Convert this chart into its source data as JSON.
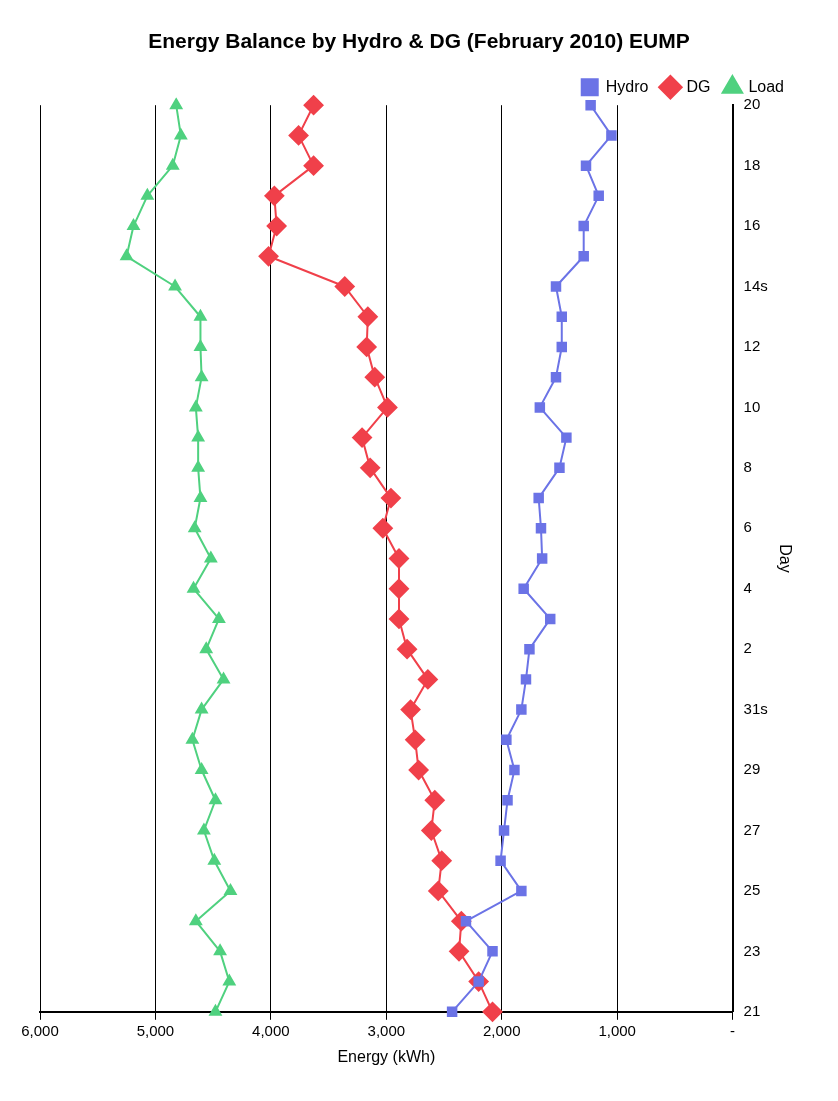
{
  "chart_data": {
    "type": "line",
    "title": "Energy Balance by Hydro & DG (February 2010) EUMP",
    "xlabel": "Energy (kWh)",
    "ylabel": "Day",
    "orientation": "horizontal",
    "categories": [
      "20",
      null,
      "18",
      null,
      "16",
      null,
      "14s",
      null,
      "12",
      null,
      "10",
      null,
      "8",
      null,
      "6",
      null,
      "4",
      null,
      "2",
      null,
      "31s",
      null,
      "29",
      null,
      "27",
      null,
      "25",
      null,
      "23",
      null,
      "21"
    ],
    "series": [
      {
        "name": "Hydro",
        "color": "#6b73e6",
        "marker": "square",
        "values": [
          1230,
          1050,
          1270,
          1160,
          1290,
          1290,
          1530,
          1480,
          1480,
          1530,
          1670,
          1440,
          1500,
          1680,
          1660,
          1650,
          1810,
          1580,
          1760,
          1790,
          1830,
          1960,
          1890,
          1950,
          1980,
          2010,
          1830,
          2310,
          2080,
          2200,
          2430
        ]
      },
      {
        "name": "DG",
        "color": "#f0404a",
        "marker": "diamond",
        "values": [
          3630,
          3760,
          3630,
          3970,
          3950,
          4020,
          3360,
          3160,
          3170,
          3100,
          2990,
          3210,
          3140,
          2960,
          3030,
          2890,
          2890,
          2890,
          2820,
          2640,
          2790,
          2750,
          2720,
          2580,
          2610,
          2520,
          2550,
          2350,
          2370,
          2200,
          2080
        ]
      },
      {
        "name": "Load",
        "color": "#4fd17f",
        "marker": "triangle",
        "values": [
          4820,
          4780,
          4850,
          5070,
          5190,
          5250,
          4830,
          4610,
          4610,
          4600,
          4650,
          4630,
          4630,
          4610,
          4660,
          4520,
          4670,
          4450,
          4560,
          4410,
          4600,
          4680,
          4600,
          4480,
          4580,
          4490,
          4350,
          4650,
          4440,
          4360,
          4480
        ]
      }
    ],
    "xlim": [
      6000,
      0
    ],
    "xticks": [
      {
        "value": 6000,
        "label": "6,000"
      },
      {
        "value": 5000,
        "label": "5,000"
      },
      {
        "value": 4000,
        "label": "4,000"
      },
      {
        "value": 3000,
        "label": "3,000"
      },
      {
        "value": 2000,
        "label": "2,000"
      },
      {
        "value": 1000,
        "label": "1,000"
      },
      {
        "value": 0,
        "label": "-"
      }
    ],
    "grid": "x",
    "legend": "top right",
    "line_style": "solid"
  }
}
